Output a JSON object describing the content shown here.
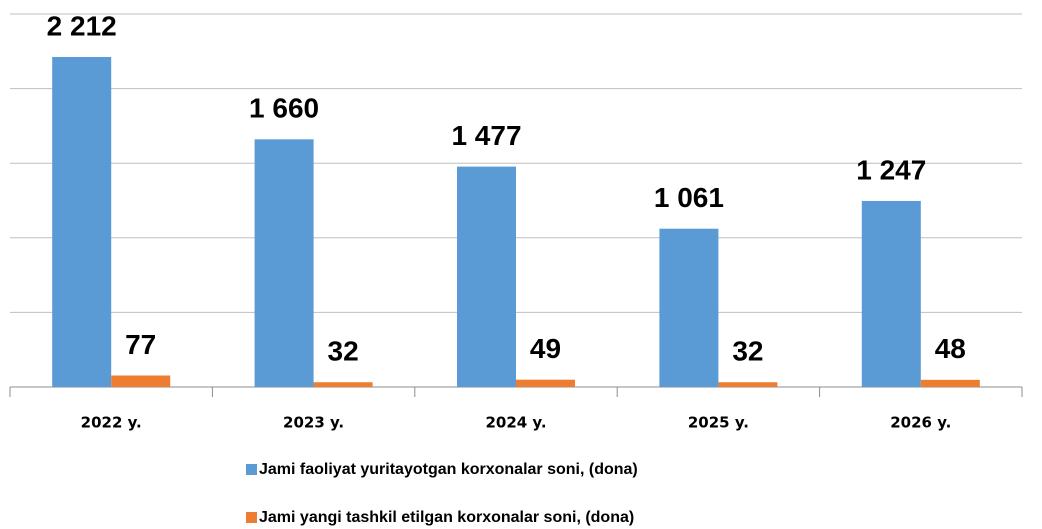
{
  "chart_data": {
    "type": "bar",
    "categories": [
      "2022 y.",
      "2023 y.",
      "2024 y.",
      "2025 y.",
      "2026 y."
    ],
    "series": [
      {
        "name": "Jami faoliyat yuritayotgan korxonalar soni, (dona)",
        "color": "#5b9bd5",
        "values": [
          2212,
          1660,
          1477,
          1061,
          1247
        ],
        "value_labels": [
          "2 212",
          "1 660",
          "1 477",
          "1 061",
          "1 247"
        ]
      },
      {
        "name": "Jami yangi tashkil etilgan korxonalar soni, (dona)",
        "color": "#ed7d31",
        "values": [
          77,
          32,
          49,
          32,
          48
        ]
      }
    ],
    "ylim": [
      0,
      2500
    ],
    "yticks": [
      0,
      500,
      1000,
      1500,
      2000,
      2500
    ],
    "grid": true,
    "legend": "bottom"
  }
}
